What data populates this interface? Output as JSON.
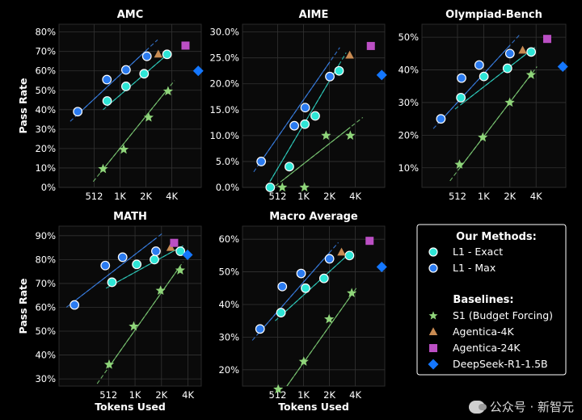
{
  "chart_data": [
    {
      "id": "amc",
      "type": "scatter",
      "title": "AMC",
      "xlabel": "",
      "ylabel": "Pass Rate",
      "x_scale": "log2",
      "x_ticks": [
        512,
        1024,
        2048,
        4096
      ],
      "x_tick_labels": [
        "512",
        "1K",
        "2K",
        "4K"
      ],
      "y_ticks": [
        0,
        10,
        20,
        30,
        40,
        50,
        60,
        70,
        80
      ],
      "y_tick_labels": [
        "0%",
        "10%",
        "20%",
        "30%",
        "40%",
        "50%",
        "60%",
        "70%",
        "80%"
      ],
      "xlim": [
        200,
        9000
      ],
      "ylim": [
        0,
        84
      ],
      "series": [
        {
          "name": "L1 - Exact",
          "points": [
            [
              725,
              44.5
            ],
            [
              1200,
              52
            ],
            [
              1950,
              58.5
            ],
            [
              3600,
              68.5
            ]
          ],
          "fit": [
            [
              650,
              40
            ],
            [
              4000,
              70
            ]
          ]
        },
        {
          "name": "L1 - Max",
          "points": [
            [
              330,
              39
            ],
            [
              720,
              55.5
            ],
            [
              1200,
              60.5
            ],
            [
              2100,
              67.5
            ]
          ],
          "fit": [
            [
              270,
              34
            ],
            [
              2800,
              76
            ]
          ]
        },
        {
          "name": "S1 (Budget Forcing)",
          "points": [
            [
              650,
              9.5
            ],
            [
              1130,
              19.5
            ],
            [
              2200,
              36
            ],
            [
              3700,
              49.5
            ]
          ],
          "fit": [
            [
              500,
              3
            ],
            [
              4400,
              55
            ]
          ]
        },
        {
          "name": "Agentica-4K",
          "points": [
            [
              2850,
              68.5
            ]
          ]
        },
        {
          "name": "Agentica-24K",
          "points": [
            [
              5900,
              73
            ]
          ]
        },
        {
          "name": "DeepSeek-R1-1.5B",
          "points": [
            [
              8300,
              60
            ]
          ]
        }
      ]
    },
    {
      "id": "aime",
      "type": "scatter",
      "title": "AIME",
      "xlabel": "",
      "ylabel": "",
      "x_scale": "log2",
      "x_ticks": [
        512,
        1024,
        2048,
        4096
      ],
      "x_tick_labels": [
        "512",
        "1K",
        "2K",
        "4K"
      ],
      "y_ticks": [
        0,
        5,
        10,
        15,
        20,
        25,
        30
      ],
      "y_tick_labels": [
        "0.0%",
        "5.0%",
        "10.0%",
        "15.0%",
        "20.0%",
        "25.0%",
        "30.0%"
      ],
      "xlim": [
        200,
        9000
      ],
      "ylim": [
        0,
        31.5
      ],
      "series": [
        {
          "name": "L1 - Exact",
          "points": [
            [
              420,
              0
            ],
            [
              700,
              4
            ],
            [
              1060,
              12.2
            ],
            [
              1400,
              13.8
            ],
            [
              2650,
              22.5
            ]
          ],
          "fit": [
            [
              380,
              0
            ],
            [
              3200,
              26
            ]
          ]
        },
        {
          "name": "L1 - Max",
          "points": [
            [
              330,
              5
            ],
            [
              800,
              11.9
            ],
            [
              1070,
              15.4
            ],
            [
              2070,
              21.4
            ]
          ],
          "fit": [
            [
              270,
              3
            ],
            [
              2700,
              27
            ]
          ]
        },
        {
          "name": "S1 (Budget Forcing)",
          "points": [
            [
              580,
              0
            ],
            [
              1050,
              0
            ],
            [
              1870,
              10
            ],
            [
              3580,
              10
            ]
          ],
          "fit": [
            [
              420,
              -0.5
            ],
            [
              5000,
              13.5
            ]
          ]
        },
        {
          "name": "Agentica-4K",
          "points": [
            [
              3520,
              25.5
            ]
          ]
        },
        {
          "name": "Agentica-24K",
          "points": [
            [
              6200,
              27.3
            ]
          ]
        },
        {
          "name": "DeepSeek-R1-1.5B",
          "points": [
            [
              8300,
              21.7
            ]
          ]
        }
      ]
    },
    {
      "id": "olympiad",
      "type": "scatter",
      "title": "Olympiad-Bench",
      "xlabel": "",
      "ylabel": "",
      "x_scale": "log2",
      "x_ticks": [
        512,
        1024,
        2048,
        4096
      ],
      "x_tick_labels": [
        "512",
        "1K",
        "2K",
        "4K"
      ],
      "y_ticks": [
        10,
        20,
        30,
        40,
        50
      ],
      "y_tick_labels": [
        "10%",
        "20%",
        "30%",
        "40%",
        "50%"
      ],
      "xlim": [
        200,
        9000
      ],
      "ylim": [
        4,
        54
      ],
      "series": [
        {
          "name": "L1 - Exact",
          "points": [
            [
              560,
              31.5
            ],
            [
              1030,
              38
            ],
            [
              1920,
              40.5
            ],
            [
              3600,
              45.5
            ]
          ],
          "fit": [
            [
              480,
              28
            ],
            [
              4000,
              47
            ]
          ]
        },
        {
          "name": "L1 - Max",
          "points": [
            [
              330,
              25
            ],
            [
              570,
              37.5
            ],
            [
              910,
              41.5
            ],
            [
              2050,
              45
            ]
          ],
          "fit": [
            [
              270,
              22
            ],
            [
              2700,
              51
            ]
          ]
        },
        {
          "name": "S1 (Budget Forcing)",
          "points": [
            [
              540,
              11
            ],
            [
              1000,
              19.3
            ],
            [
              2040,
              30
            ],
            [
              3580,
              38.5
            ]
          ],
          "fit": [
            [
              420,
              6
            ],
            [
              4200,
              41
            ]
          ]
        },
        {
          "name": "Agentica-4K",
          "points": [
            [
              2870,
              46
            ]
          ]
        },
        {
          "name": "Agentica-24K",
          "points": [
            [
              5500,
              49.5
            ]
          ]
        },
        {
          "name": "DeepSeek-R1-1.5B",
          "points": [
            [
              8300,
              41
            ]
          ]
        }
      ]
    },
    {
      "id": "math",
      "type": "scatter",
      "title": "MATH",
      "xlabel": "Tokens Used",
      "ylabel": "Pass Rate",
      "x_scale": "log2",
      "x_ticks": [
        512,
        1024,
        2048,
        4096
      ],
      "x_tick_labels": [
        "512",
        "1K",
        "2K",
        "4K"
      ],
      "y_ticks": [
        30,
        40,
        50,
        60,
        70,
        80,
        90
      ],
      "y_tick_labels": [
        "30%",
        "40%",
        "50%",
        "60%",
        "70%",
        "80%",
        "90%"
      ],
      "xlim": [
        140,
        5800
      ],
      "ylim": [
        27,
        94
      ],
      "series": [
        {
          "name": "L1 - Exact",
          "points": [
            [
              560,
              70.5
            ],
            [
              1070,
              78
            ],
            [
              1700,
              80
            ],
            [
              3360,
              83.5
            ]
          ],
          "fit": [
            [
              480,
              68
            ],
            [
              3700,
              86
            ]
          ]
        },
        {
          "name": "L1 - Max",
          "points": [
            [
              210,
              61
            ],
            [
              470,
              77.5
            ],
            [
              740,
              81
            ],
            [
              1770,
              83.5
            ]
          ],
          "fit": [
            [
              170,
              60
            ],
            [
              2100,
              91
            ]
          ]
        },
        {
          "name": "S1 (Budget Forcing)",
          "points": [
            [
              520,
              36
            ],
            [
              990,
              52
            ],
            [
              2000,
              67
            ],
            [
              3340,
              75.5
            ]
          ],
          "fit": [
            [
              380,
              28
            ],
            [
              3600,
              79
            ]
          ]
        },
        {
          "name": "Agentica-4K",
          "points": [
            [
              2600,
              85
            ]
          ]
        },
        {
          "name": "Agentica-24K",
          "points": [
            [
              2850,
              87
            ]
          ]
        },
        {
          "name": "DeepSeek-R1-1.5B",
          "points": [
            [
              4050,
              82
            ]
          ]
        }
      ]
    },
    {
      "id": "macro",
      "type": "scatter",
      "title": "Macro Average",
      "xlabel": "Tokens Used",
      "ylabel": "",
      "x_scale": "log2",
      "x_ticks": [
        512,
        1024,
        2048,
        4096
      ],
      "x_tick_labels": [
        "512",
        "1K",
        "2K",
        "4K"
      ],
      "y_ticks": [
        20,
        30,
        40,
        50,
        60
      ],
      "y_tick_labels": [
        "20%",
        "30%",
        "40%",
        "50%",
        "60%"
      ],
      "xlim": [
        200,
        9000
      ],
      "ylim": [
        15,
        64
      ],
      "series": [
        {
          "name": "L1 - Exact",
          "points": [
            [
              560,
              37.5
            ],
            [
              1080,
              45
            ],
            [
              1770,
              48
            ],
            [
              3500,
              55
            ]
          ],
          "fit": [
            [
              480,
              35
            ],
            [
              3800,
              56.5
            ]
          ]
        },
        {
          "name": "L1 - Max",
          "points": [
            [
              320,
              32.5
            ],
            [
              580,
              45.5
            ],
            [
              960,
              49.5
            ],
            [
              2050,
              54
            ]
          ],
          "fit": [
            [
              260,
              29
            ],
            [
              2600,
              59
            ]
          ]
        },
        {
          "name": "S1 (Budget Forcing)",
          "points": [
            [
              520,
              14
            ],
            [
              1030,
              22.5
            ],
            [
              2030,
              35.5
            ],
            [
              3720,
              43.5
            ]
          ],
          "fit": [
            [
              400,
              7
            ],
            [
              4200,
              45
            ]
          ]
        },
        {
          "name": "Agentica-4K",
          "points": [
            [
              2830,
              56
            ]
          ]
        },
        {
          "name": "Agentica-24K",
          "points": [
            [
              6000,
              59.5
            ]
          ]
        },
        {
          "name": "DeepSeek-R1-1.5B",
          "points": [
            [
              8300,
              51.5
            ]
          ]
        }
      ]
    }
  ],
  "styles": {
    "L1 - Exact": {
      "marker": "circle",
      "fill": "#2ee6d6",
      "fit_color": "#2fd3c3"
    },
    "L1 - Max": {
      "marker": "circle",
      "fill": "#2b7bf0",
      "fit_color": "#3a82ea"
    },
    "S1 (Budget Forcing)": {
      "marker": "star",
      "fill": "#8fd57a",
      "fit_color": "#7fcf77"
    },
    "Agentica-4K": {
      "marker": "triangle",
      "fill": "#c98b52"
    },
    "Agentica-24K": {
      "marker": "square",
      "fill": "#bb4fc4"
    },
    "DeepSeek-R1-1.5B": {
      "marker": "diamond",
      "fill": "#1477ff"
    }
  },
  "legend": {
    "position": "bottom-right",
    "our_methods_header": "Our Methods:",
    "baselines_header": "Baselines:",
    "our_methods": [
      "L1 - Exact",
      "L1 - Max"
    ],
    "baselines": [
      "S1 (Budget Forcing)",
      "Agentica-4K",
      "Agentica-24K",
      "DeepSeek-R1-1.5B"
    ]
  },
  "watermark": {
    "text": "公众号 · 新智元"
  }
}
